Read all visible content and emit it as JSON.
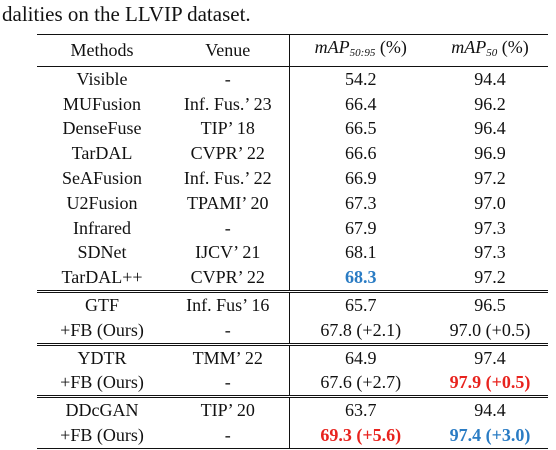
{
  "caption": "dalities on the LLVIP dataset.",
  "header": {
    "methods": "Methods",
    "venue": "Venue",
    "map5095_main": "mAP",
    "map5095_sub": "50:95",
    "map5095_unit": " (%)",
    "map50_main": "mAP",
    "map50_sub": "50",
    "map50_unit": " (%)"
  },
  "colors": {
    "best": "#e8231e",
    "second": "#2a7cc4"
  },
  "rows": [
    {
      "method": "Visible",
      "venue": "-",
      "map5095": "54.2",
      "map50": "94.4",
      "map5095_style": "",
      "map50_style": ""
    },
    {
      "method": "MUFusion",
      "venue": "Inf. Fus.’ 23",
      "map5095": "66.4",
      "map50": "96.2",
      "map5095_style": "",
      "map50_style": ""
    },
    {
      "method": "DenseFuse",
      "venue": "TIP’ 18",
      "map5095": "66.5",
      "map50": "96.4",
      "map5095_style": "",
      "map50_style": ""
    },
    {
      "method": "TarDAL",
      "venue": "CVPR’ 22",
      "map5095": "66.6",
      "map50": "96.9",
      "map5095_style": "",
      "map50_style": ""
    },
    {
      "method": "SeAFusion",
      "venue": "Inf. Fus.’ 22",
      "map5095": "66.9",
      "map50": "97.2",
      "map5095_style": "",
      "map50_style": ""
    },
    {
      "method": "U2Fusion",
      "venue": "TPAMI’ 20",
      "map5095": "67.3",
      "map50": "97.0",
      "map5095_style": "",
      "map50_style": ""
    },
    {
      "method": "Infrared",
      "venue": "-",
      "map5095": "67.9",
      "map50": "97.3",
      "map5095_style": "",
      "map50_style": ""
    },
    {
      "method": "SDNet",
      "venue": "IJCV’ 21",
      "map5095": "68.1",
      "map50": "97.3",
      "map5095_style": "",
      "map50_style": ""
    },
    {
      "method": "TarDAL++",
      "venue": "CVPR’ 22",
      "map5095": "68.3",
      "map50": "97.2",
      "map5095_style": "blue",
      "map50_style": ""
    },
    {
      "method": "GTF",
      "venue": "Inf. Fus’ 16",
      "map5095": "65.7",
      "map50": "96.5",
      "map5095_style": "",
      "map50_style": "",
      "sep": "double"
    },
    {
      "method": "+FB (Ours)",
      "venue": "-",
      "map5095": "67.8 (+2.1)",
      "map50": "97.0 (+0.5)",
      "map5095_style": "",
      "map50_style": ""
    },
    {
      "method": "YDTR",
      "venue": "TMM’ 22",
      "map5095": "64.9",
      "map50": "97.4",
      "map5095_style": "",
      "map50_style": "",
      "sep": "double"
    },
    {
      "method": "+FB (Ours)",
      "venue": "-",
      "map5095": "67.6 (+2.7)",
      "map50": "97.9 (+0.5)",
      "map5095_style": "",
      "map50_style": "red"
    },
    {
      "method": "DDcGAN",
      "venue": "TIP’ 20",
      "map5095": "63.7",
      "map50": "94.4",
      "map5095_style": "",
      "map50_style": "",
      "sep": "double"
    },
    {
      "method": "+FB (Ours)",
      "venue": "-",
      "map5095": "69.3 (+5.6)",
      "map50": "97.4 (+3.0)",
      "map5095_style": "red",
      "map50_style": "blue"
    }
  ]
}
